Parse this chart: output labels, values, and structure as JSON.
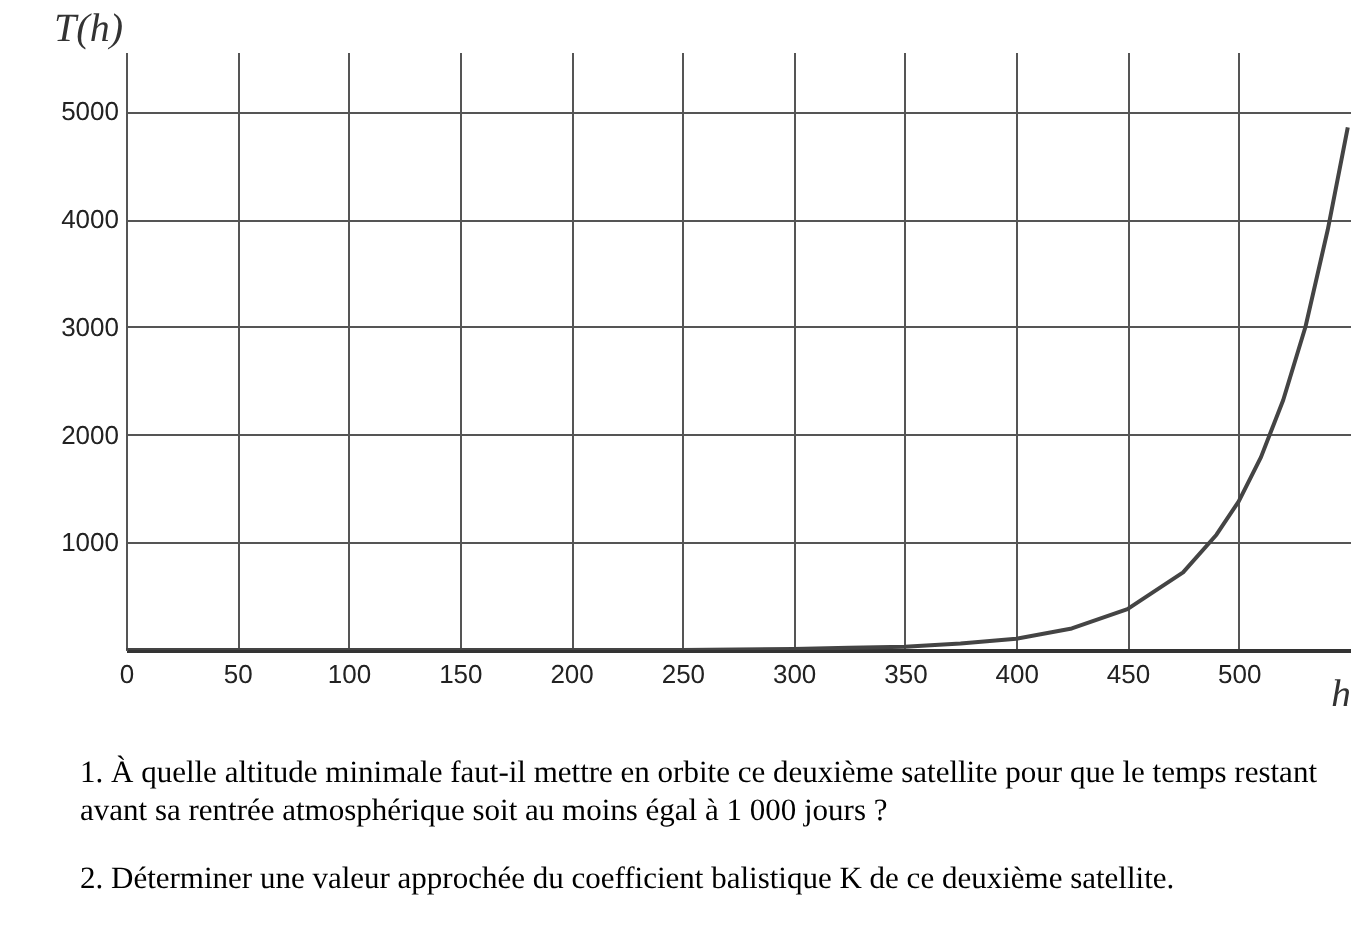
{
  "chart_data": {
    "type": "line",
    "xlabel": "h",
    "ylabel": "T(h)",
    "x": [
      0,
      100,
      200,
      250,
      300,
      325,
      350,
      375,
      400,
      425,
      450,
      475,
      490,
      500,
      510,
      520,
      530,
      540,
      549
    ],
    "series": [
      {
        "color": "#444444",
        "values": [
          0,
          0,
          0,
          0,
          10,
          20,
          30,
          60,
          105,
          200,
          380,
          720,
          1070,
          1380,
          1790,
          2320,
          3000,
          3900,
          4850
        ]
      }
    ],
    "xlim": [
      0,
      550
    ],
    "ylim": [
      0,
      5550
    ],
    "xticks": [
      0,
      50,
      100,
      150,
      200,
      250,
      300,
      350,
      400,
      450,
      500
    ],
    "yticks": [
      1000,
      2000,
      3000,
      4000,
      5000
    ],
    "grid": true,
    "line_style": "solid",
    "annotations": [
      "1. À quelle altitude minimale faut-il mettre en orbite ce deuxième satellite pour que le temps restant avant sa rentrée atmosphérique soit au moins égal à 1 000 jours ?",
      "2. Déterminer une valeur approchée du coefficient balistique K de ce deuxième satellite."
    ]
  }
}
